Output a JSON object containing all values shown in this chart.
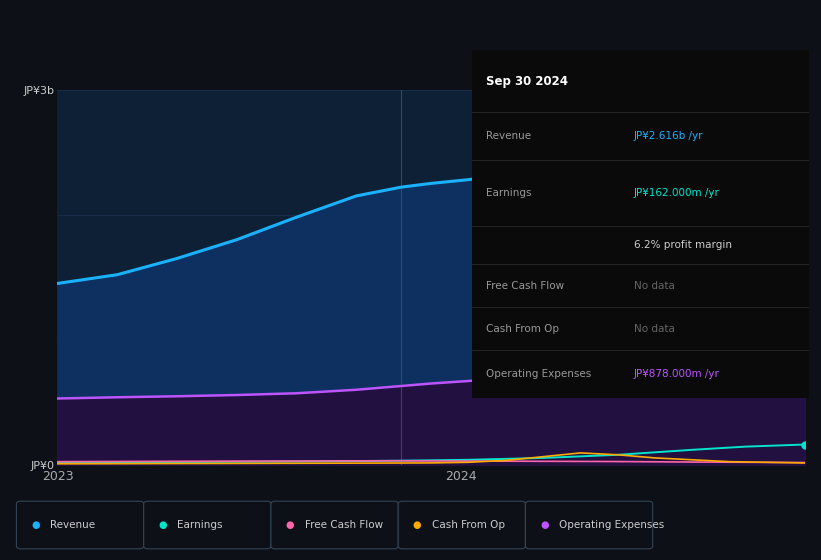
{
  "bg_color": "#0d1117",
  "chart_bg": "#0d2035",
  "table_bg": "#0a0a0a",
  "ylabel_top": "JP¥3b",
  "ylabel_bottom": "JP¥0",
  "ylim": [
    0,
    3000
  ],
  "revenue_color": "#1ab2ff",
  "revenue_fill": "#0d3060",
  "opex_color": "#bb55ff",
  "opex_fill": "#221040",
  "earnings_color": "#00e5cc",
  "fcf_color": "#ff66aa",
  "cashfromop_color": "#ffaa00",
  "vline_color": "#3a5575",
  "grid_color": "#1a3050",
  "revenue_x": [
    0.0,
    0.08,
    0.16,
    0.24,
    0.32,
    0.4,
    0.46,
    0.5,
    0.55,
    0.65,
    0.75,
    0.85,
    0.92,
    1.0
  ],
  "revenue_y": [
    1450,
    1520,
    1650,
    1800,
    1980,
    2150,
    2220,
    2250,
    2280,
    2360,
    2450,
    2540,
    2580,
    2616
  ],
  "opex_x": [
    0.0,
    0.08,
    0.16,
    0.24,
    0.32,
    0.4,
    0.46,
    0.5,
    0.55,
    0.65,
    0.75,
    0.85,
    0.92,
    1.0
  ],
  "opex_y": [
    530,
    540,
    548,
    558,
    572,
    600,
    630,
    650,
    670,
    715,
    760,
    810,
    845,
    878
  ],
  "earnings_x": [
    0.0,
    0.08,
    0.16,
    0.24,
    0.32,
    0.4,
    0.46,
    0.5,
    0.55,
    0.65,
    0.75,
    0.85,
    0.92,
    1.0
  ],
  "earnings_y": [
    18,
    20,
    22,
    24,
    26,
    30,
    33,
    36,
    40,
    55,
    80,
    120,
    145,
    162
  ],
  "fcf_x": [
    0.0,
    0.15,
    0.3,
    0.45,
    0.55,
    0.65,
    0.75,
    0.85,
    1.0
  ],
  "fcf_y": [
    25,
    28,
    30,
    32,
    30,
    28,
    26,
    22,
    18
  ],
  "cashfromop_x": [
    0.0,
    0.15,
    0.3,
    0.44,
    0.5,
    0.55,
    0.6,
    0.65,
    0.7,
    0.75,
    0.8,
    0.85,
    0.9,
    1.0
  ],
  "cashfromop_y": [
    8,
    10,
    12,
    14,
    15,
    20,
    35,
    65,
    95,
    80,
    55,
    40,
    25,
    15
  ],
  "vline_x": 0.46,
  "x_tick_2023": 0.0,
  "x_tick_2024": 0.54,
  "legend": [
    {
      "label": "Revenue",
      "color": "#1ab2ff"
    },
    {
      "label": "Earnings",
      "color": "#00e5cc"
    },
    {
      "label": "Free Cash Flow",
      "color": "#ff66aa"
    },
    {
      "label": "Cash From Op",
      "color": "#ffaa00"
    },
    {
      "label": "Operating Expenses",
      "color": "#bb55ff"
    }
  ],
  "table_rows": [
    {
      "label": "Sep 30 2024",
      "value": "",
      "vcolor": "#ffffff",
      "header": true
    },
    {
      "label": "Revenue",
      "value": "JP¥2.616b /yr",
      "vcolor": "#1ab2ff",
      "header": false
    },
    {
      "label": "Earnings",
      "value": "JP¥162.000m /yr",
      "vcolor": "#00e5cc",
      "header": false
    },
    {
      "label": "",
      "value": "6.2% profit margin",
      "vcolor": "#cccccc",
      "header": false
    },
    {
      "label": "Free Cash Flow",
      "value": "No data",
      "vcolor": "#666666",
      "header": false
    },
    {
      "label": "Cash From Op",
      "value": "No data",
      "vcolor": "#666666",
      "header": false
    },
    {
      "label": "Operating Expenses",
      "value": "JP¥878.000m /yr",
      "vcolor": "#bb55ff",
      "header": false
    }
  ]
}
